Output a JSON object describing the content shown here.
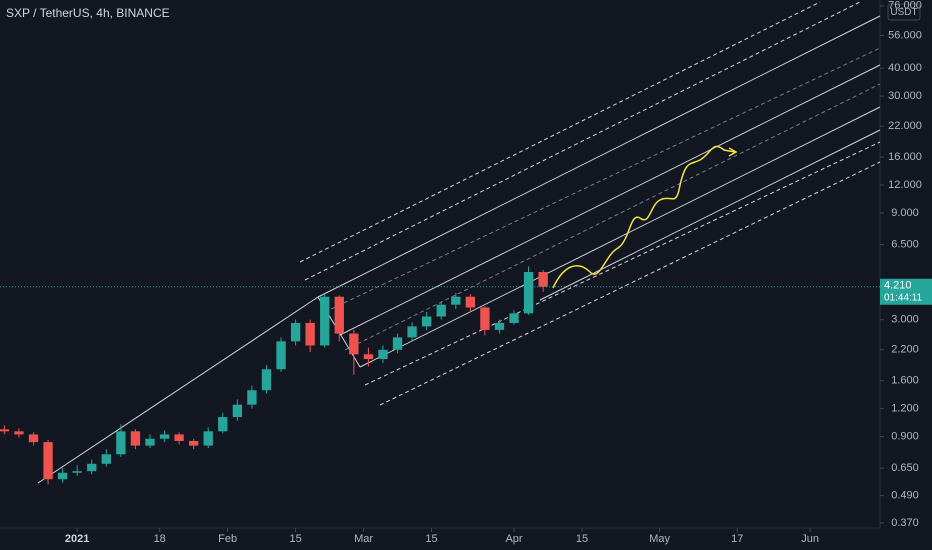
{
  "chart_data": {
    "type": "candlestick",
    "title": "SXP / TetherUS, 4h, BINANCE",
    "currency": "USDT",
    "log_scale": true,
    "up_color": "#26a69a",
    "down_color": "#ef5350",
    "x": [
      -15,
      -12,
      -9,
      -6,
      -3,
      0,
      3,
      6,
      9,
      12,
      15,
      18,
      21,
      24,
      27,
      30,
      33,
      36,
      39,
      42,
      45,
      48,
      51,
      54,
      57,
      60,
      63,
      66,
      69,
      72,
      75,
      78,
      81,
      84,
      87,
      90,
      93,
      96
    ],
    "open": [
      0.97,
      0.95,
      0.92,
      0.85,
      0.58,
      0.62,
      0.63,
      0.68,
      0.75,
      0.95,
      0.82,
      0.88,
      0.92,
      0.86,
      0.82,
      0.95,
      1.1,
      1.25,
      1.45,
      1.8,
      2.4,
      2.9,
      2.3,
      3.8,
      2.6,
      2.1,
      2.0,
      2.2,
      2.5,
      2.8,
      3.1,
      3.5,
      3.8,
      3.4,
      2.7,
      2.9,
      3.2,
      4.9
    ],
    "high": [
      1.01,
      0.98,
      0.94,
      0.87,
      0.65,
      0.67,
      0.71,
      0.79,
      1.02,
      0.97,
      0.92,
      0.96,
      0.94,
      0.88,
      0.99,
      1.15,
      1.32,
      1.52,
      1.88,
      2.5,
      3.0,
      3.0,
      3.9,
      3.85,
      2.7,
      2.25,
      2.3,
      2.6,
      2.92,
      3.25,
      3.62,
      3.95,
      3.9,
      3.45,
      3.0,
      3.3,
      5.2,
      5.0
    ],
    "low": [
      0.92,
      0.89,
      0.82,
      0.55,
      0.56,
      0.6,
      0.61,
      0.66,
      0.73,
      0.79,
      0.8,
      0.85,
      0.83,
      0.79,
      0.8,
      0.93,
      1.06,
      1.2,
      1.4,
      1.75,
      2.3,
      2.15,
      2.25,
      2.4,
      1.7,
      1.85,
      1.92,
      2.12,
      2.4,
      2.7,
      3.0,
      3.35,
      3.25,
      2.55,
      2.6,
      2.85,
      3.15,
      4.0
    ],
    "close": [
      0.95,
      0.92,
      0.85,
      0.58,
      0.62,
      0.63,
      0.68,
      0.75,
      0.95,
      0.82,
      0.88,
      0.92,
      0.86,
      0.82,
      0.95,
      1.1,
      1.25,
      1.45,
      1.8,
      2.4,
      2.9,
      2.3,
      3.8,
      2.6,
      2.1,
      2.0,
      2.2,
      2.5,
      2.8,
      3.1,
      3.5,
      3.8,
      3.4,
      2.7,
      2.9,
      3.2,
      4.9,
      4.21
    ],
    "xlim": [
      -15.9,
      165.4
    ],
    "xticks": [
      {
        "value": 0,
        "label": "2021"
      },
      {
        "value": 17,
        "label": "18"
      },
      {
        "value": 31,
        "label": "Feb"
      },
      {
        "value": 45,
        "label": "15"
      },
      {
        "value": 59,
        "label": "Mar"
      },
      {
        "value": 73,
        "label": "15"
      },
      {
        "value": 90,
        "label": "Apr"
      },
      {
        "value": 104,
        "label": "15"
      },
      {
        "value": 120,
        "label": "May"
      },
      {
        "value": 136,
        "label": "17"
      },
      {
        "value": 151,
        "label": "Jun"
      }
    ],
    "ylim": [
      0.351,
      80.7
    ],
    "yticks": [
      {
        "value": 76,
        "label": "76.000"
      },
      {
        "value": 56,
        "label": "56.000"
      },
      {
        "value": 40,
        "label": "40.000"
      },
      {
        "value": 30,
        "label": "30.000"
      },
      {
        "value": 22,
        "label": "22.000"
      },
      {
        "value": 16,
        "label": "16.000"
      },
      {
        "value": 12,
        "label": "12.000"
      },
      {
        "value": 9,
        "label": "9.000"
      },
      {
        "value": 6.5,
        "label": "6.500"
      },
      {
        "value": 3,
        "label": "3.000"
      },
      {
        "value": 2.2,
        "label": "2.200"
      },
      {
        "value": 1.6,
        "label": "1.600"
      },
      {
        "value": 1.2,
        "label": "1.200"
      },
      {
        "value": 0.9,
        "label": "0.900"
      },
      {
        "value": 0.65,
        "label": "0.650"
      },
      {
        "value": 0.49,
        "label": "0.490"
      },
      {
        "value": 0.37,
        "label": "0.370"
      }
    ],
    "last_price": {
      "value": 4.21,
      "label": "4.210"
    },
    "countdown": "01:44:11"
  }
}
